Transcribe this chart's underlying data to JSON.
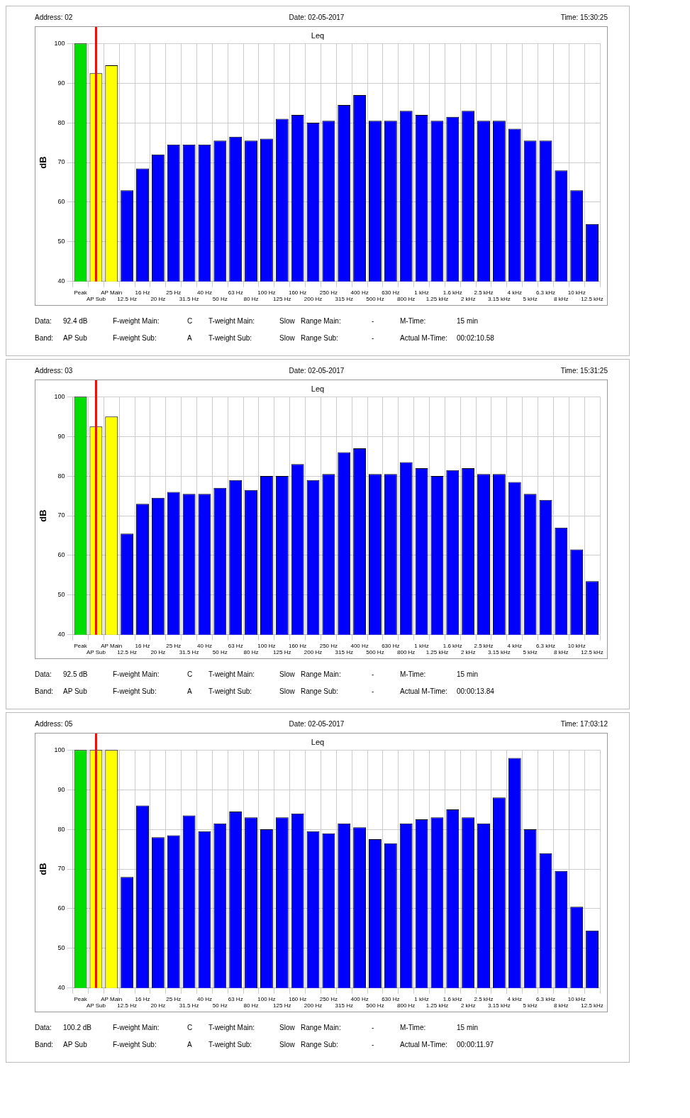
{
  "chart_data": [
    {
      "type": "bar",
      "title": "Leq",
      "ylabel": "dB",
      "categories": [
        "Peak",
        "AP Sub",
        "AP Main",
        "12.5 Hz",
        "16 Hz",
        "20 Hz",
        "25 Hz",
        "31.5 Hz",
        "40 Hz",
        "50 Hz",
        "63 Hz",
        "80 Hz",
        "100 Hz",
        "125 Hz",
        "160 Hz",
        "200 Hz",
        "250 Hz",
        "315 Hz",
        "400 Hz",
        "500 Hz",
        "630 Hz",
        "800 Hz",
        "1 kHz",
        "1.25 kHz",
        "1.6 kHz",
        "2 kHz",
        "2.5 kHz",
        "3.15 kHz",
        "4 kHz",
        "5 kHz",
        "6.3 kHz",
        "8 kHz",
        "10 kHz",
        "12.5 kHz"
      ],
      "values": [
        100,
        92.5,
        94.5,
        63,
        68.5,
        72,
        74.5,
        74.5,
        74.5,
        75.5,
        76.5,
        75.5,
        76,
        81,
        82,
        80,
        80.5,
        84.5,
        87,
        80.5,
        80.5,
        83,
        82,
        80.5,
        81.5,
        83,
        80.5,
        80.5,
        78.5,
        75.5,
        75.5,
        68,
        63,
        54.5
      ],
      "colors": [
        "#00dd00",
        "#ffff00",
        "#ffff00",
        "#0000ff",
        "#0000ff",
        "#0000ff",
        "#0000ff",
        "#0000ff",
        "#0000ff",
        "#0000ff",
        "#0000ff",
        "#0000ff",
        "#0000ff",
        "#0000ff",
        "#0000ff",
        "#0000ff",
        "#0000ff",
        "#0000ff",
        "#0000ff",
        "#0000ff",
        "#0000ff",
        "#0000ff",
        "#0000ff",
        "#0000ff",
        "#0000ff",
        "#0000ff",
        "#0000ff",
        "#0000ff",
        "#0000ff",
        "#0000ff",
        "#0000ff",
        "#0000ff",
        "#0000ff",
        "#0000ff"
      ],
      "ylim": [
        40,
        100
      ],
      "yticks": [
        40,
        50,
        60,
        70,
        80,
        90,
        100
      ],
      "grid": true,
      "legend": false,
      "ref_lines": [
        {
          "axis": "x",
          "value": "AP Sub",
          "color": "#ff0000"
        }
      ],
      "annotations": [
        "Address: 02",
        "Date: 02-05-2017",
        "Time: 15:30:25",
        "Data:",
        "92.4 dB",
        "F-weight Main:",
        "C",
        "T-weight Main:",
        "Slow",
        "Range Main:",
        "-",
        "M-Time:",
        "15 min",
        "Band:",
        "AP Sub",
        "F-weight Sub:",
        "A",
        "T-weight Sub:",
        "Slow",
        "Range Sub:",
        "-",
        "Actual M-Time:",
        "00:02:10.58"
      ]
    },
    {
      "type": "bar",
      "title": "Leq",
      "ylabel": "dB",
      "categories": [
        "Peak",
        "AP Sub",
        "AP Main",
        "12.5 Hz",
        "16 Hz",
        "20 Hz",
        "25 Hz",
        "31.5 Hz",
        "40 Hz",
        "50 Hz",
        "63 Hz",
        "80 Hz",
        "100 Hz",
        "125 Hz",
        "160 Hz",
        "200 Hz",
        "250 Hz",
        "315 Hz",
        "400 Hz",
        "500 Hz",
        "630 Hz",
        "800 Hz",
        "1 kHz",
        "1.25 kHz",
        "1.6 kHz",
        "2 kHz",
        "2.5 kHz",
        "3.15 kHz",
        "4 kHz",
        "5 kHz",
        "6.3 kHz",
        "8 kHz",
        "10 kHz",
        "12.5 kHz"
      ],
      "values": [
        100,
        92.5,
        95,
        65.5,
        73,
        74.5,
        76,
        75.5,
        75.5,
        77,
        79,
        76.5,
        80,
        80,
        83,
        79,
        80.5,
        86,
        87,
        80.5,
        80.5,
        83.5,
        82,
        80,
        81.5,
        82,
        80.5,
        80.5,
        78.5,
        75.5,
        74,
        67,
        61.5,
        53.5
      ],
      "colors": [
        "#00dd00",
        "#ffff00",
        "#ffff00",
        "#0000ff",
        "#0000ff",
        "#0000ff",
        "#0000ff",
        "#0000ff",
        "#0000ff",
        "#0000ff",
        "#0000ff",
        "#0000ff",
        "#0000ff",
        "#0000ff",
        "#0000ff",
        "#0000ff",
        "#0000ff",
        "#0000ff",
        "#0000ff",
        "#0000ff",
        "#0000ff",
        "#0000ff",
        "#0000ff",
        "#0000ff",
        "#0000ff",
        "#0000ff",
        "#0000ff",
        "#0000ff",
        "#0000ff",
        "#0000ff",
        "#0000ff",
        "#0000ff",
        "#0000ff",
        "#0000ff"
      ],
      "ylim": [
        40,
        100
      ],
      "yticks": [
        40,
        50,
        60,
        70,
        80,
        90,
        100
      ],
      "grid": true,
      "legend": false,
      "ref_lines": [
        {
          "axis": "x",
          "value": "AP Sub",
          "color": "#ff0000"
        }
      ],
      "annotations": [
        "Address: 03",
        "Date: 02-05-2017",
        "Time: 15:31:25",
        "Data:",
        "92.5 dB",
        "F-weight Main:",
        "C",
        "T-weight Main:",
        "Slow",
        "Range Main:",
        "-",
        "M-Time:",
        "15 min",
        "Band:",
        "AP Sub",
        "F-weight Sub:",
        "A",
        "T-weight Sub:",
        "Slow",
        "Range Sub:",
        "-",
        "Actual M-Time:",
        "00:00:13.84"
      ]
    },
    {
      "type": "bar",
      "title": "Leq",
      "ylabel": "dB",
      "categories": [
        "Peak",
        "AP Sub",
        "AP Main",
        "12.5 Hz",
        "16 Hz",
        "20 Hz",
        "25 Hz",
        "31.5 Hz",
        "40 Hz",
        "50 Hz",
        "63 Hz",
        "80 Hz",
        "100 Hz",
        "125 Hz",
        "160 Hz",
        "200 Hz",
        "250 Hz",
        "315 Hz",
        "400 Hz",
        "500 Hz",
        "630 Hz",
        "800 Hz",
        "1 kHz",
        "1.25 kHz",
        "1.6 kHz",
        "2 kHz",
        "2.5 kHz",
        "3.15 kHz",
        "4 kHz",
        "5 kHz",
        "6.3 kHz",
        "8 kHz",
        "10 kHz",
        "12.5 kHz"
      ],
      "values": [
        100,
        100,
        100,
        68,
        86,
        78,
        78.5,
        83.5,
        79.5,
        81.5,
        84.5,
        83,
        80,
        83,
        84,
        79.5,
        79,
        81.5,
        80.5,
        77.5,
        76.5,
        81.5,
        82.5,
        83,
        85,
        83,
        81.5,
        88,
        98,
        80,
        74,
        69.5,
        60.5,
        54.5
      ],
      "colors": [
        "#00dd00",
        "#ffff00",
        "#ffff00",
        "#0000ff",
        "#0000ff",
        "#0000ff",
        "#0000ff",
        "#0000ff",
        "#0000ff",
        "#0000ff",
        "#0000ff",
        "#0000ff",
        "#0000ff",
        "#0000ff",
        "#0000ff",
        "#0000ff",
        "#0000ff",
        "#0000ff",
        "#0000ff",
        "#0000ff",
        "#0000ff",
        "#0000ff",
        "#0000ff",
        "#0000ff",
        "#0000ff",
        "#0000ff",
        "#0000ff",
        "#0000ff",
        "#0000ff",
        "#0000ff",
        "#0000ff",
        "#0000ff",
        "#0000ff",
        "#0000ff"
      ],
      "ylim": [
        40,
        100
      ],
      "yticks": [
        40,
        50,
        60,
        70,
        80,
        90,
        100
      ],
      "grid": true,
      "legend": false,
      "ref_lines": [
        {
          "axis": "x",
          "value": "AP Sub",
          "color": "#ff0000"
        }
      ],
      "annotations": [
        "Address: 05",
        "Date: 02-05-2017",
        "Time: 17:03:12",
        "Data:",
        "100.2 dB",
        "F-weight Main:",
        "C",
        "T-weight Main:",
        "Slow",
        "Range Main:",
        "-",
        "M-Time:",
        "15 min",
        "Band:",
        "AP Sub",
        "F-weight Sub:",
        "A",
        "T-weight Sub:",
        "Slow",
        "Range Sub:",
        "-",
        "Actual M-Time:",
        "00:00:11.97"
      ]
    }
  ]
}
